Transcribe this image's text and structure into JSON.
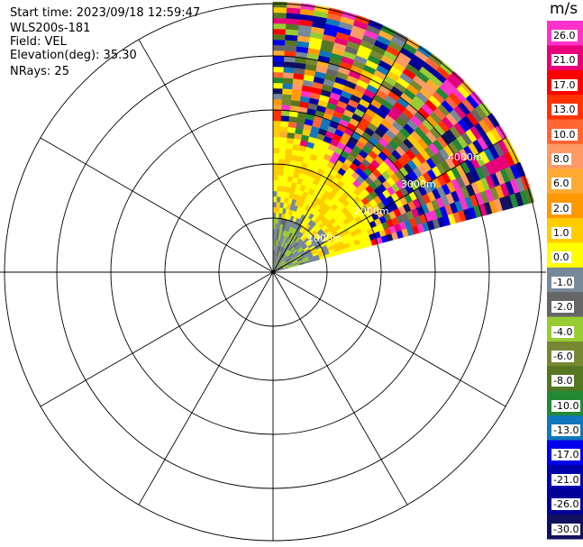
{
  "header": {
    "start_time": "Start time: 2023/09/18 12:59:47",
    "instrument": "WLS200s-181",
    "field": "Field: VEL",
    "elevation": "Elevation(deg): 35.30",
    "nrays": "NRays: 25"
  },
  "chart_data": {
    "type": "heatmap",
    "projection": "polar PPI",
    "field": "VEL",
    "unit_label": "m/s",
    "azimuth_sector_deg": [
      0,
      75
    ],
    "n_rays": 25,
    "range_ring_labels": [
      "1000m",
      "2000m",
      "3000m",
      "4000m"
    ],
    "grid_spokes_deg": [
      0,
      30,
      60,
      90,
      120,
      150,
      180,
      210,
      240,
      270,
      300,
      330
    ],
    "colorbar": {
      "tick_labels": [
        "26.0",
        "21.0",
        "17.0",
        "13.0",
        "10.0",
        "8.0",
        "6.0",
        "2.0",
        "1.0",
        "0.0",
        "-1.0",
        "-2.0",
        "-4.0",
        "-6.0",
        "-8.0",
        "-10.0",
        "-13.0",
        "-17.0",
        "-21.0",
        "-26.0",
        "-30.0"
      ],
      "colors": [
        "#ff33cc",
        "#e6007a",
        "#ff0000",
        "#ff3300",
        "#ff6633",
        "#ff9966",
        "#ffaa33",
        "#ff9900",
        "#ffcc00",
        "#ffff00",
        "#778899",
        "#666666",
        "#99cc33",
        "#778833",
        "#557722",
        "#228833",
        "#1177bb",
        "#0000ee",
        "#0000aa",
        "#000099",
        "#101060"
      ]
    },
    "regions": [
      {
        "name": "near",
        "range_m": [
          0,
          1000
        ],
        "dominant": "gray / green, ~0 to -2 m/s"
      },
      {
        "name": "mid",
        "range_m": [
          1000,
          2500
        ],
        "dominant": "yellow, ~1 to 2 m/s"
      },
      {
        "name": "far",
        "range_m": [
          2500,
          4900
        ],
        "dominant": "noise, full -30 to 26 m/s"
      }
    ]
  }
}
